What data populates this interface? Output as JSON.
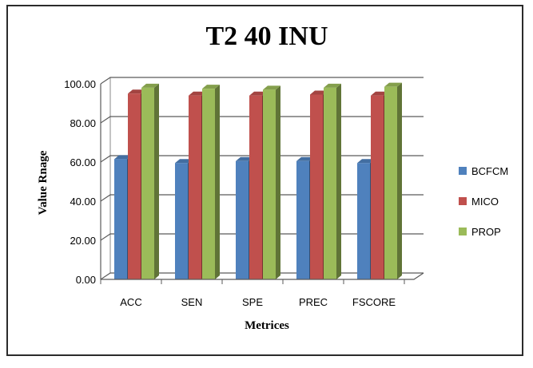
{
  "chart_data": {
    "type": "bar",
    "title": "T2 40 INU",
    "xlabel": "Metrices",
    "ylabel": "Value Rnage",
    "ylim": [
      0,
      100
    ],
    "yticks": [
      "0.00",
      "20.00",
      "40.00",
      "60.00",
      "80.00",
      "100.00"
    ],
    "categories": [
      "ACC",
      "SEN",
      "SPE",
      "PREC",
      "FSCORE"
    ],
    "series": [
      {
        "name": "BCFCM",
        "values": [
          61.5,
          59.5,
          60.5,
          60.5,
          59.5
        ],
        "color": "#4f81bd"
      },
      {
        "name": "MICO",
        "values": [
          95.0,
          94.0,
          94.0,
          94.5,
          94.0
        ],
        "color": "#c0504d"
      },
      {
        "name": "PROP",
        "values": [
          98.0,
          97.5,
          97.0,
          98.0,
          98.5
        ],
        "color": "#9bbb59"
      }
    ],
    "grid": true,
    "legend_position": "right"
  }
}
